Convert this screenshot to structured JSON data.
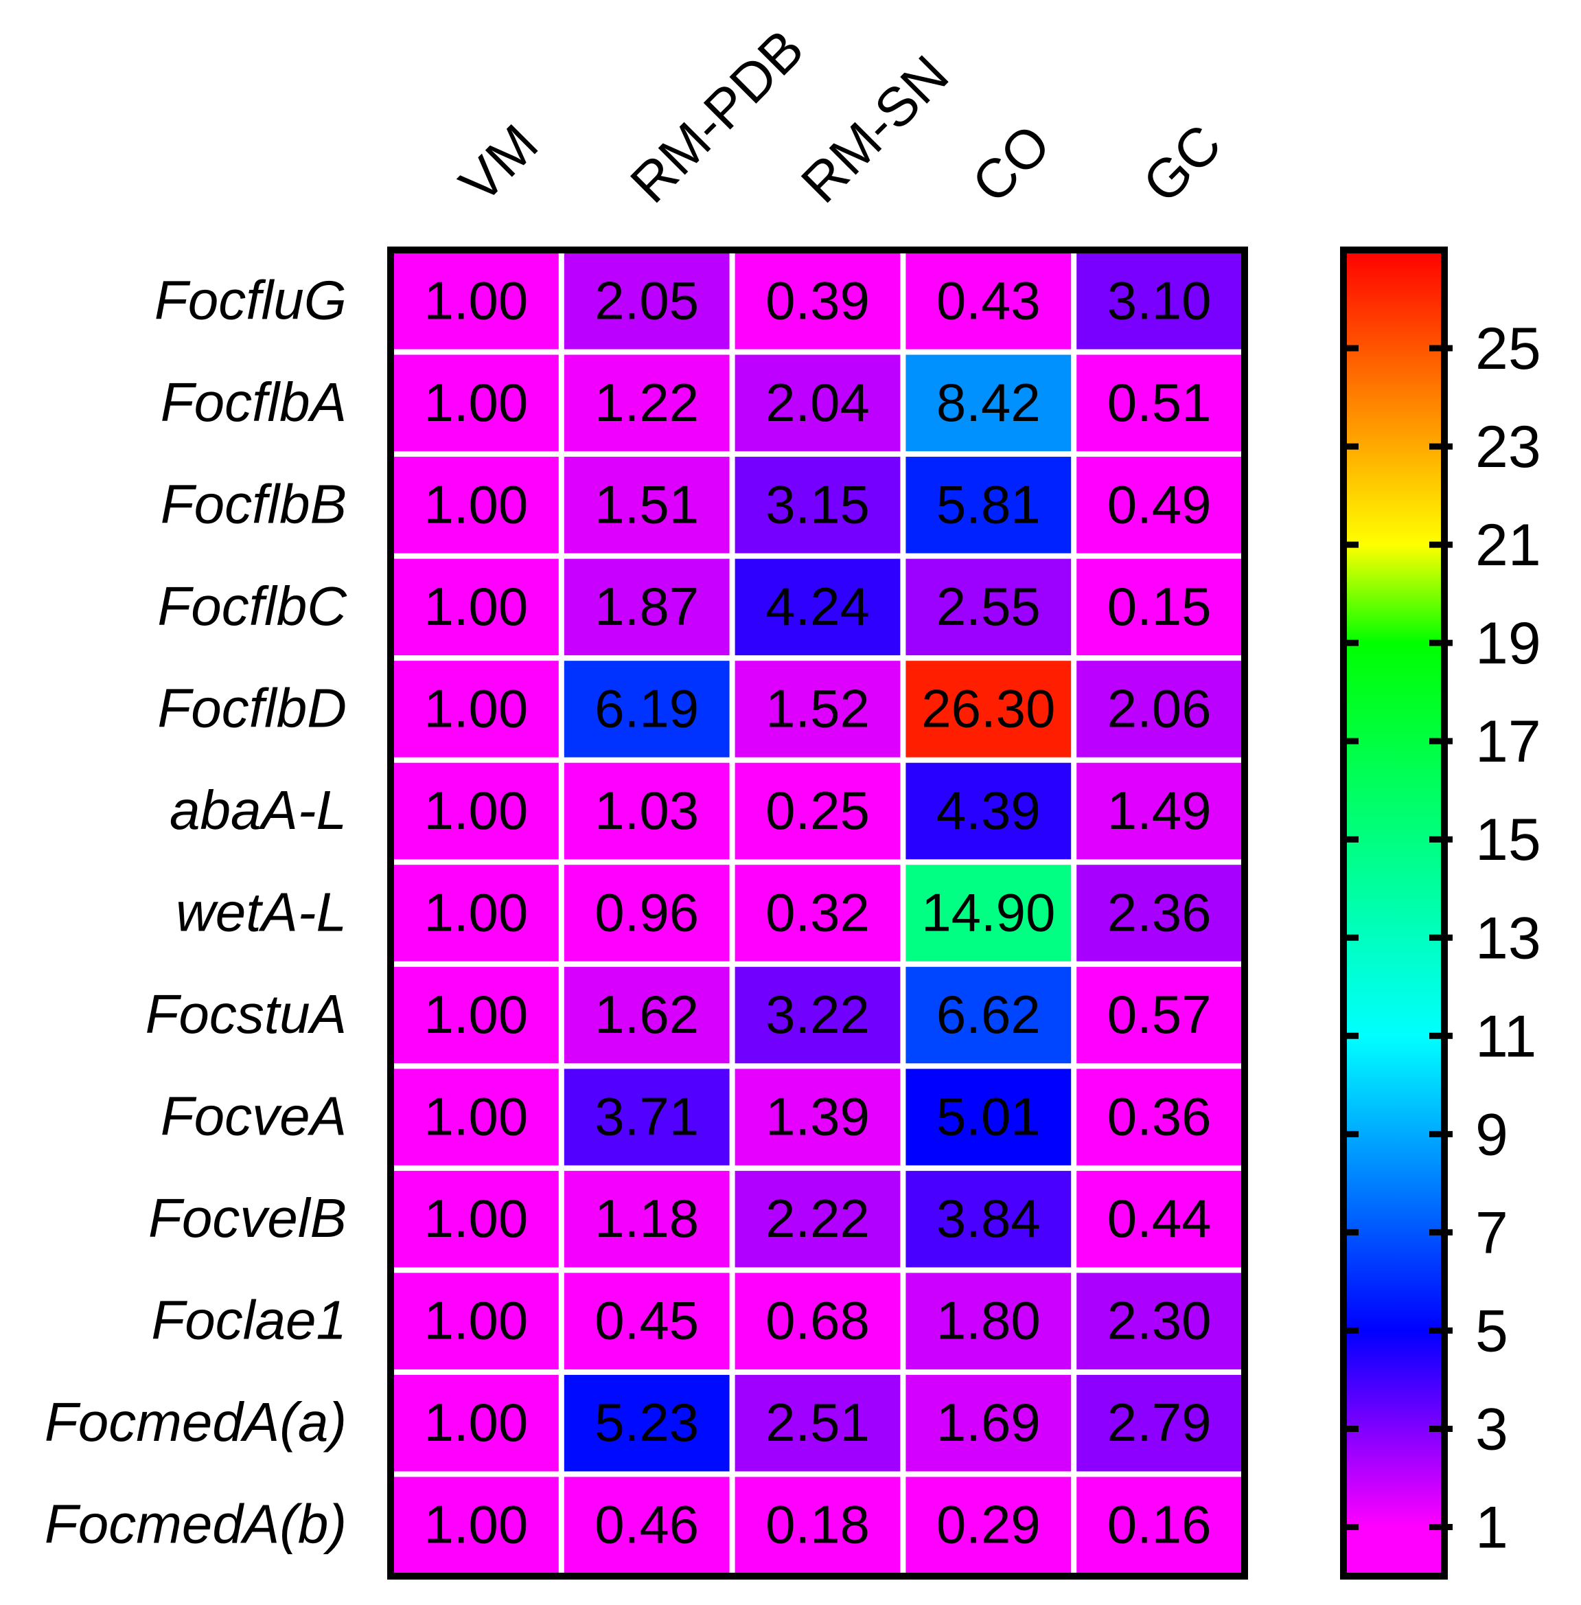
{
  "chart_data": {
    "type": "heatmap",
    "columns": [
      "VM",
      "RM-PDB",
      "RM-SN",
      "CO",
      "GC"
    ],
    "rows": [
      "FocfluG",
      "FocflbA",
      "FocflbB",
      "FocflbC",
      "FocflbD",
      "abaA-L",
      "wetA-L",
      "FocstuA",
      "FocveA",
      "FocvelB",
      "Foclae1",
      "FocmedA(a)",
      "FocmedA(b)"
    ],
    "values": [
      [
        1.0,
        2.05,
        0.39,
        0.43,
        3.1
      ],
      [
        1.0,
        1.22,
        2.04,
        8.42,
        0.51
      ],
      [
        1.0,
        1.51,
        3.15,
        5.81,
        0.49
      ],
      [
        1.0,
        1.87,
        4.24,
        2.55,
        0.15
      ],
      [
        1.0,
        6.19,
        1.52,
        26.3,
        2.06
      ],
      [
        1.0,
        1.03,
        0.25,
        4.39,
        1.49
      ],
      [
        1.0,
        0.96,
        0.32,
        14.9,
        2.36
      ],
      [
        1.0,
        1.62,
        3.22,
        6.62,
        0.57
      ],
      [
        1.0,
        3.71,
        1.39,
        5.01,
        0.36
      ],
      [
        1.0,
        1.18,
        2.22,
        3.84,
        0.44
      ],
      [
        1.0,
        0.45,
        0.68,
        1.8,
        2.3
      ],
      [
        1.0,
        5.23,
        2.51,
        1.69,
        2.79
      ],
      [
        1.0,
        0.46,
        0.18,
        0.29,
        0.16
      ]
    ],
    "value_labels": [
      [
        "1.00",
        "2.05",
        "0.39",
        "0.43",
        "3.10"
      ],
      [
        "1.00",
        "1.22",
        "2.04",
        "8.42",
        "0.51"
      ],
      [
        "1.00",
        "1.51",
        "3.15",
        "5.81",
        "0.49"
      ],
      [
        "1.00",
        "1.87",
        "4.24",
        "2.55",
        "0.15"
      ],
      [
        "1.00",
        "6.19",
        "1.52",
        "26.30",
        "2.06"
      ],
      [
        "1.00",
        "1.03",
        "0.25",
        "4.39",
        "1.49"
      ],
      [
        "1.00",
        "0.96",
        "0.32",
        "14.90",
        "2.36"
      ],
      [
        "1.00",
        "1.62",
        "3.22",
        "6.62",
        "0.57"
      ],
      [
        "1.00",
        "3.71",
        "1.39",
        "5.01",
        "0.36"
      ],
      [
        "1.00",
        "1.18",
        "2.22",
        "3.84",
        "0.44"
      ],
      [
        "1.00",
        "0.45",
        "0.68",
        "1.80",
        "2.30"
      ],
      [
        "1.00",
        "5.23",
        "2.51",
        "1.69",
        "2.79"
      ],
      [
        "1.00",
        "0.46",
        "0.18",
        "0.29",
        "0.16"
      ]
    ],
    "colorbar": {
      "range": [
        0,
        27
      ],
      "ticks": [
        1,
        3,
        5,
        7,
        9,
        11,
        13,
        15,
        17,
        19,
        21,
        23,
        25
      ],
      "tick_labels": [
        "1",
        "3",
        "5",
        "7",
        "9",
        "11",
        "13",
        "15",
        "17",
        "19",
        "21",
        "23",
        "25"
      ],
      "stops": [
        {
          "v": 1,
          "color": "#ff00ff"
        },
        {
          "v": 5,
          "color": "#0000ff"
        },
        {
          "v": 11,
          "color": "#00ffff"
        },
        {
          "v": 19,
          "color": "#00ff00"
        },
        {
          "v": 21,
          "color": "#ffff00"
        },
        {
          "v": 27,
          "color": "#ff0000"
        }
      ]
    },
    "row_labels_italic": true,
    "grid_color": "#ffffff",
    "border_color": "#000000"
  }
}
